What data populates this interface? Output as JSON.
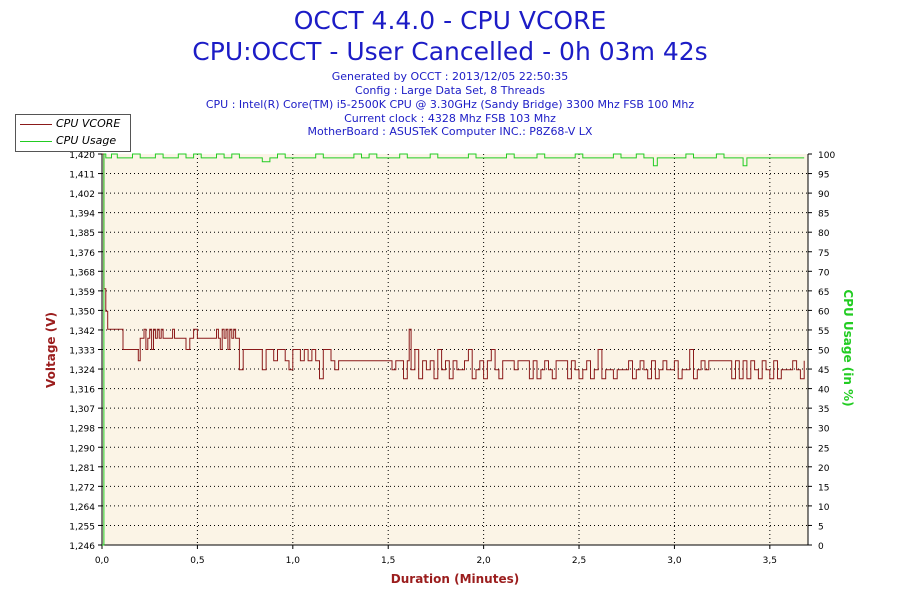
{
  "header": {
    "title": "OCCT 4.4.0 - CPU VCORE",
    "subtitle": "CPU:OCCT - User Cancelled - 0h 03m 42s",
    "info_lines": [
      "Generated by OCCT : 2013/12/05 22:50:35",
      "Config : Large Data Set, 8 Threads",
      "CPU : Intel(R) Core(TM) i5-2500K CPU @ 3.30GHz (Sandy Bridge) 3300 Mhz FSB 100 Mhz",
      "Current clock : 4328 Mhz FSB 103 Mhz",
      "MotherBoard : ASUSTeK Computer INC.: P8Z68-V LX"
    ]
  },
  "legend": {
    "vcore_label": "CPU VCORE",
    "usage_label": "CPU Usage"
  },
  "colors": {
    "vcore": "#8b1a1a",
    "usage": "#22cc22",
    "plot_bg": "#fbf4e6",
    "grid": "#000000",
    "axis_title_left": "#9b1d1d",
    "axis_title_right": "#22cc22",
    "title": "#1c1cc6"
  },
  "chart_data": {
    "type": "line",
    "title": "OCCT 4.4.0 - CPU VCORE",
    "xlabel": "Duration (Minutes)",
    "ylabel": "Voltage (V)",
    "y2label": "CPU Usage (in %)",
    "xlim": [
      0,
      3.7
    ],
    "ylim": [
      1.246,
      1.42
    ],
    "y2lim": [
      0,
      100
    ],
    "x_ticks": [
      "0,0",
      "0,5",
      "1,0",
      "1,5",
      "2,0",
      "2,5",
      "3,0",
      "3,5"
    ],
    "x_tick_values": [
      0,
      0.5,
      1.0,
      1.5,
      2.0,
      2.5,
      3.0,
      3.5
    ],
    "y_ticks": [
      "1,246",
      "1,255",
      "1,264",
      "1,272",
      "1,281",
      "1,290",
      "1,298",
      "1,307",
      "1,316",
      "1,324",
      "1,333",
      "1,342",
      "1,350",
      "1,359",
      "1,368",
      "1,376",
      "1,385",
      "1,394",
      "1,402",
      "1,411",
      "1,420"
    ],
    "y2_ticks": [
      "0",
      "5",
      "10",
      "15",
      "20",
      "25",
      "30",
      "35",
      "40",
      "45",
      "50",
      "55",
      "60",
      "65",
      "70",
      "75",
      "80",
      "85",
      "90",
      "95",
      "100"
    ],
    "grid": true,
    "legend_position": "top-left",
    "series": [
      {
        "name": "CPU VCORE",
        "axis": "left",
        "x": [
          0,
          0.01,
          0.02,
          0.03,
          0.05,
          0.1,
          0.11,
          0.15,
          0.19,
          0.2,
          0.22,
          0.23,
          0.24,
          0.25,
          0.26,
          0.27,
          0.28,
          0.29,
          0.3,
          0.31,
          0.32,
          0.33,
          0.34,
          0.35,
          0.36,
          0.37,
          0.38,
          0.4,
          0.41,
          0.42,
          0.44,
          0.46,
          0.48,
          0.5,
          0.52,
          0.54,
          0.56,
          0.58,
          0.59,
          0.6,
          0.61,
          0.62,
          0.63,
          0.64,
          0.65,
          0.66,
          0.67,
          0.68,
          0.69,
          0.7,
          0.72,
          0.74,
          0.76,
          0.78,
          0.8,
          0.82,
          0.84,
          0.86,
          0.88,
          0.9,
          0.92,
          0.94,
          0.96,
          0.98,
          1.0,
          1.02,
          1.04,
          1.06,
          1.08,
          1.1,
          1.12,
          1.14,
          1.16,
          1.18,
          1.2,
          1.22,
          1.24,
          1.26,
          1.28,
          1.3,
          1.33,
          1.36,
          1.4,
          1.44,
          1.48,
          1.5,
          1.52,
          1.54,
          1.56,
          1.58,
          1.6,
          1.61,
          1.62,
          1.64,
          1.66,
          1.68,
          1.7,
          1.72,
          1.74,
          1.76,
          1.78,
          1.8,
          1.82,
          1.84,
          1.86,
          1.88,
          1.9,
          1.92,
          1.94,
          1.96,
          1.98,
          2.0,
          2.02,
          2.04,
          2.06,
          2.08,
          2.1,
          2.12,
          2.14,
          2.16,
          2.18,
          2.2,
          2.22,
          2.24,
          2.26,
          2.28,
          2.3,
          2.32,
          2.34,
          2.36,
          2.38,
          2.4,
          2.42,
          2.44,
          2.46,
          2.48,
          2.5,
          2.52,
          2.54,
          2.56,
          2.58,
          2.6,
          2.62,
          2.64,
          2.66,
          2.68,
          2.7,
          2.72,
          2.74,
          2.76,
          2.78,
          2.8,
          2.82,
          2.84,
          2.86,
          2.88,
          2.9,
          2.92,
          2.94,
          2.96,
          2.98,
          3.0,
          3.02,
          3.04,
          3.06,
          3.08,
          3.1,
          3.12,
          3.14,
          3.16,
          3.18,
          3.2,
          3.22,
          3.24,
          3.26,
          3.28,
          3.3,
          3.32,
          3.34,
          3.36,
          3.38,
          3.4,
          3.42,
          3.44,
          3.46,
          3.48,
          3.5,
          3.52,
          3.54,
          3.56,
          3.58,
          3.6,
          3.62,
          3.64,
          3.66,
          3.68
        ],
        "values": [
          1.42,
          1.36,
          1.35,
          1.342,
          1.342,
          1.342,
          1.333,
          1.333,
          1.328,
          1.338,
          1.342,
          1.333,
          1.338,
          1.342,
          1.333,
          1.342,
          1.338,
          1.342,
          1.338,
          1.342,
          1.338,
          1.338,
          1.338,
          1.338,
          1.338,
          1.342,
          1.338,
          1.338,
          1.338,
          1.338,
          1.333,
          1.338,
          1.342,
          1.338,
          1.338,
          1.338,
          1.338,
          1.338,
          1.338,
          1.342,
          1.338,
          1.333,
          1.342,
          1.338,
          1.342,
          1.333,
          1.342,
          1.338,
          1.342,
          1.338,
          1.324,
          1.333,
          1.333,
          1.333,
          1.333,
          1.333,
          1.324,
          1.333,
          1.333,
          1.328,
          1.333,
          1.333,
          1.328,
          1.324,
          1.333,
          1.333,
          1.328,
          1.333,
          1.328,
          1.333,
          1.328,
          1.32,
          1.333,
          1.333,
          1.328,
          1.324,
          1.328,
          1.328,
          1.328,
          1.328,
          1.328,
          1.328,
          1.328,
          1.328,
          1.328,
          1.328,
          1.324,
          1.328,
          1.328,
          1.32,
          1.328,
          1.342,
          1.324,
          1.333,
          1.32,
          1.328,
          1.324,
          1.328,
          1.32,
          1.333,
          1.324,
          1.328,
          1.32,
          1.328,
          1.324,
          1.324,
          1.328,
          1.333,
          1.32,
          1.324,
          1.328,
          1.32,
          1.328,
          1.333,
          1.324,
          1.32,
          1.328,
          1.328,
          1.328,
          1.324,
          1.328,
          1.328,
          1.328,
          1.32,
          1.328,
          1.32,
          1.324,
          1.328,
          1.324,
          1.32,
          1.328,
          1.328,
          1.328,
          1.32,
          1.328,
          1.324,
          1.32,
          1.324,
          1.328,
          1.32,
          1.324,
          1.333,
          1.32,
          1.324,
          1.324,
          1.32,
          1.324,
          1.324,
          1.324,
          1.328,
          1.32,
          1.324,
          1.328,
          1.324,
          1.32,
          1.328,
          1.32,
          1.324,
          1.328,
          1.324,
          1.324,
          1.328,
          1.32,
          1.324,
          1.324,
          1.333,
          1.32,
          1.324,
          1.328,
          1.324,
          1.328,
          1.328,
          1.328,
          1.328,
          1.328,
          1.328,
          1.32,
          1.328,
          1.32,
          1.328,
          1.32,
          1.328,
          1.324,
          1.32,
          1.328,
          1.324,
          1.32,
          1.328,
          1.32,
          1.324,
          1.324,
          1.324,
          1.328,
          1.324,
          1.32,
          1.328
        ]
      },
      {
        "name": "CPU Usage",
        "axis": "right",
        "x": [
          0,
          0.01,
          0.015,
          0.02,
          0.03,
          0.05,
          0.08,
          0.12,
          0.16,
          0.2,
          0.24,
          0.28,
          0.32,
          0.36,
          0.4,
          0.44,
          0.48,
          0.52,
          0.56,
          0.6,
          0.64,
          0.68,
          0.72,
          0.76,
          0.8,
          0.84,
          0.88,
          0.92,
          0.96,
          1.0,
          1.04,
          1.08,
          1.12,
          1.16,
          1.2,
          1.24,
          1.28,
          1.32,
          1.36,
          1.4,
          1.44,
          1.48,
          1.52,
          1.56,
          1.6,
          1.64,
          1.68,
          1.72,
          1.76,
          1.8,
          1.84,
          1.88,
          1.92,
          1.96,
          2.0,
          2.04,
          2.08,
          2.12,
          2.16,
          2.2,
          2.24,
          2.28,
          2.32,
          2.36,
          2.4,
          2.44,
          2.48,
          2.52,
          2.56,
          2.6,
          2.64,
          2.68,
          2.72,
          2.76,
          2.8,
          2.84,
          2.87,
          2.89,
          2.91,
          2.94,
          2.98,
          3.02,
          3.06,
          3.1,
          3.14,
          3.18,
          3.22,
          3.26,
          3.3,
          3.34,
          3.36,
          3.38,
          3.42,
          3.46,
          3.5,
          3.54,
          3.58,
          3.62,
          3.66,
          3.68
        ],
        "values": [
          0,
          100,
          100,
          99,
          99,
          100,
          99,
          99,
          100,
          99,
          99,
          100,
          99,
          99,
          100,
          99,
          100,
          99,
          99,
          100,
          99,
          100,
          99,
          99,
          99,
          98,
          99,
          100,
          99,
          99,
          99,
          99,
          100,
          99,
          99,
          99,
          99,
          100,
          99,
          100,
          99,
          99,
          99,
          100,
          99,
          99,
          99,
          100,
          99,
          99,
          99,
          99,
          100,
          99,
          99,
          99,
          99,
          100,
          99,
          99,
          99,
          100,
          99,
          99,
          99,
          99,
          100,
          99,
          99,
          99,
          99,
          100,
          99,
          99,
          100,
          99,
          99,
          97,
          99,
          99,
          99,
          99,
          100,
          99,
          99,
          99,
          100,
          99,
          99,
          99,
          97,
          99,
          99,
          99,
          99,
          99,
          99,
          99,
          99,
          99
        ]
      }
    ]
  }
}
